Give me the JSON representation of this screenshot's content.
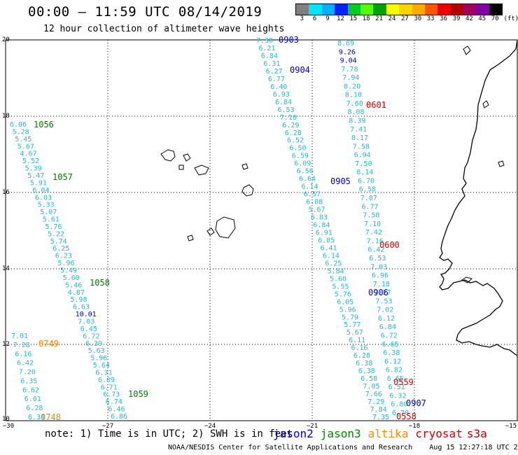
{
  "header": {
    "title": "00:00 – 11:59 UTC 08/14/2019",
    "subtitle": "12 hour collection of altimeter wave heights"
  },
  "colorbar": {
    "ticks": [
      "3",
      "6",
      "9",
      "12",
      "15",
      "18",
      "21",
      "24",
      "27",
      "30",
      "33",
      "36",
      "39",
      "42",
      "45",
      "70",
      "(ft)"
    ],
    "colors": [
      "#7f7f7f",
      "#00e5ff",
      "#00b0ff",
      "#0022ff",
      "#00cc22",
      "#55ff00",
      "#00a000",
      "#ffff00",
      "#ffd400",
      "#ffaa00",
      "#ff5500",
      "#ee0000",
      "#b00000",
      "#a00060",
      "#7f00a0",
      "#000000"
    ]
  },
  "axes": {
    "x_ticks": [
      "−30",
      "−27",
      "−24",
      "−21",
      "−18",
      "−15"
    ],
    "y_ticks": [
      "20",
      "18",
      "16",
      "14",
      "12",
      "10"
    ]
  },
  "colors": {
    "jason2": "#0000cc",
    "jason3": "#007a00",
    "altika": "#ff8800",
    "cryosat": "#dd0000",
    "swh": "#29b5df",
    "swh_blue": "#0000cc"
  },
  "passes": [
    {
      "label": "0903",
      "sat": "jason2"
    },
    {
      "label": "0904",
      "sat": "jason2"
    },
    {
      "label": "0905",
      "sat": "jason2"
    },
    {
      "label": "0906",
      "sat": "jason2"
    },
    {
      "label": "0907",
      "sat": "jason2"
    },
    {
      "label": "1056",
      "sat": "jason3"
    },
    {
      "label": "1057",
      "sat": "jason3"
    },
    {
      "label": "1058",
      "sat": "jason3"
    },
    {
      "label": "1059",
      "sat": "jason3"
    },
    {
      "label": "0749",
      "sat": "altika"
    },
    {
      "label": "0748",
      "sat": "altika"
    },
    {
      "label": "0601",
      "sat": "cryosat"
    },
    {
      "label": "0600",
      "sat": "cryosat"
    },
    {
      "label": "0559",
      "sat": "cryosat"
    },
    {
      "label": "0558",
      "sat": "cryosat"
    }
  ],
  "tracks": {
    "west_upper": [
      "6.06",
      "5.28",
      "5.45",
      "5.67",
      "4.67",
      "5.52",
      "5.39",
      "5.47",
      "5.91",
      "6.04",
      "6.03",
      "5.33",
      "5.07",
      "5.61",
      "5.76",
      "5.22",
      "5.74",
      "6.25",
      "6.23",
      "5.96",
      "5.49",
      "5.60",
      "5.46",
      "4.87",
      "5.98",
      "6.63",
      "10.01",
      "7.03",
      "6.45",
      "6.72",
      "6.39",
      "5.63",
      "5.96",
      "5.64",
      "6.31",
      "6.09",
      "6.71",
      "6.73",
      "6.74",
      "6.46",
      "6.86"
    ],
    "west_lower": [
      "7.01",
      "7.28",
      "6.16",
      "6.42",
      "7.20",
      "6.35",
      "6.62",
      "6.01",
      "6.28",
      "6.34"
    ],
    "mid": [
      "7.30",
      "6.21",
      "6.84",
      "6.31",
      "6.27",
      "6.77",
      "6.40",
      "6.93",
      "6.84",
      "6.53",
      "7.10",
      "6.29",
      "6.28",
      "6.52",
      "6.50",
      "6.59",
      "6.09",
      "6.56",
      "6.64",
      "6.14",
      "6.57",
      "6.08",
      "5.67",
      "6.83",
      "6.84",
      "6.91",
      "6.85",
      "6.41",
      "6.14",
      "6.25",
      "5.84",
      "5.60",
      "5.55",
      "5.76",
      "6.05",
      "5.96",
      "5.79",
      "5.77",
      "5.67",
      "6.11",
      "6.16",
      "6.28",
      "6.38",
      "6.38",
      "6.58",
      "7.05",
      "7.66",
      "7.29",
      "7.84",
      "7.35"
    ],
    "east": [
      "8.69",
      "9.26",
      "9.04",
      "7.78",
      "7.94",
      "8.20",
      "8.10",
      "7.60",
      "8.08",
      "8.39",
      "7.41",
      "8.17",
      "7.58",
      "6.94",
      "7.50",
      "8.14",
      "6.70",
      "6.58",
      "7.07",
      "6.77",
      "7.58",
      "7.10",
      "7.42",
      "7.16",
      "6.42",
      "6.53",
      "7.03",
      "6.96",
      "7.18",
      "7.27",
      "7.53",
      "7.02",
      "6.12",
      "6.84",
      "6.72",
      "6.65",
      "6.38",
      "6.12",
      "6.82",
      "6.65",
      "6.51",
      "6.32",
      "6.80",
      "6.70"
    ]
  },
  "note": "note: 1) Time is in UTC; 2) SWH is in feet",
  "legend": [
    {
      "name": "jason2",
      "color": "#0000cc"
    },
    {
      "name": "jason3",
      "color": "#008800"
    },
    {
      "name": "altika",
      "color": "#ff8800"
    },
    {
      "name": "cryosat",
      "color": "#dd0000"
    },
    {
      "name": "s3a",
      "color": "#aa0000"
    }
  ],
  "credit": "NOAA/NESDIS Center for Satellite Applications and Research    Aug 15 12:27:18 UTC 2019"
}
